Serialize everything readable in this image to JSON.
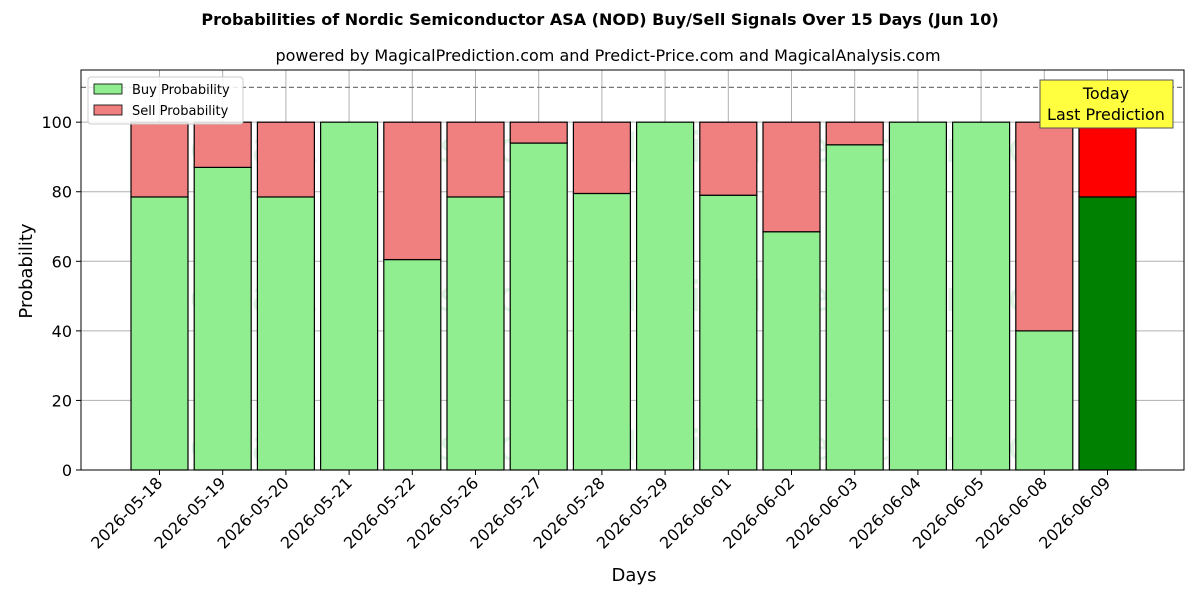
{
  "chart_data": {
    "type": "bar",
    "stacked": true,
    "title": "Probabilities of Nordic Semiconductor ASA (NOD) Buy/Sell Signals Over 15 Days (Jun 10)",
    "subtitle": "powered by MagicalPrediction.com and Predict-Price.com and MagicalAnalysis.com",
    "xlabel": "Days",
    "ylabel": "Probability",
    "ylim": [
      0,
      115
    ],
    "yticks": [
      0,
      20,
      40,
      60,
      80,
      100
    ],
    "grid": true,
    "legend_position": "top-left",
    "reference_line": 110,
    "categories": [
      "2026-05-18",
      "2026-05-19",
      "2026-05-20",
      "2026-05-21",
      "2026-05-22",
      "2026-05-26",
      "2026-05-27",
      "2026-05-28",
      "2026-05-29",
      "2026-06-01",
      "2026-06-02",
      "2026-06-03",
      "2026-06-04",
      "2026-06-05",
      "2026-06-08",
      "2026-06-09"
    ],
    "series": [
      {
        "name": "Buy Probability",
        "color": "#90ee90",
        "highlight_color": "#008000",
        "values": [
          78.5,
          87,
          78.5,
          100,
          60.5,
          78.5,
          94,
          79.5,
          100,
          79,
          68.5,
          93.5,
          100,
          100,
          40,
          78.5
        ]
      },
      {
        "name": "Sell Probability",
        "color": "#f08080",
        "highlight_color": "#ff0000",
        "values": [
          21.5,
          13,
          21.5,
          0,
          39.5,
          21.5,
          6,
          20.5,
          0,
          21,
          31.5,
          6.5,
          0,
          0,
          60,
          21.5
        ]
      }
    ],
    "highlight_index": 15,
    "annotation": "Today\nLast Prediction",
    "watermarks": [
      "MagicalAnalysis.com",
      "MagicalPrediction.com"
    ]
  }
}
